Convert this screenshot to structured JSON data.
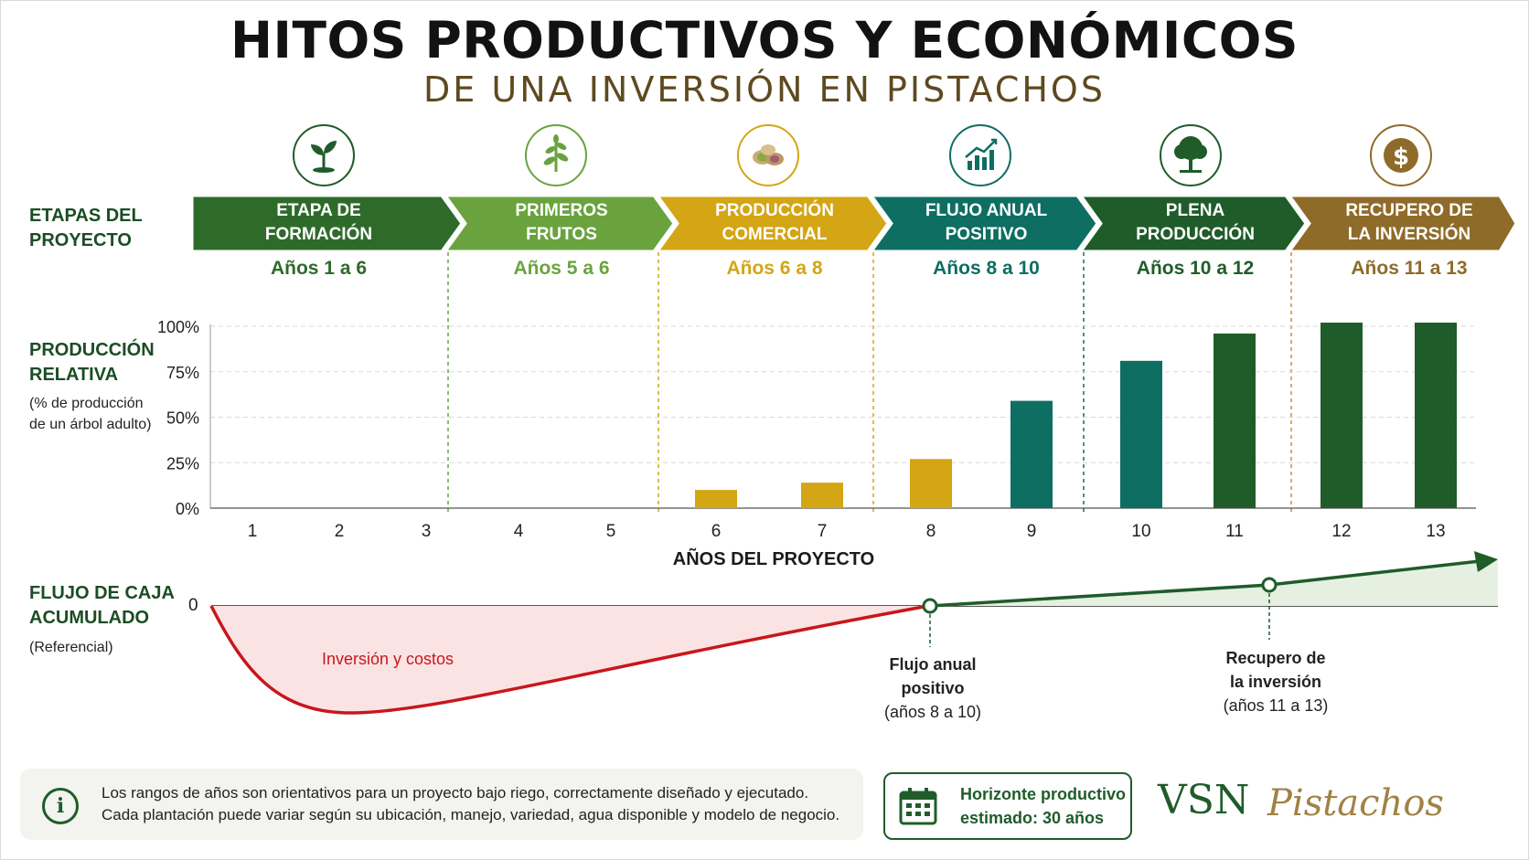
{
  "header": {
    "title": "HITOS PRODUCTIVOS Y ECONÓMICOS",
    "subtitle": "DE UNA INVERSIÓN EN PISTACHOS"
  },
  "rows": {
    "stages_label_1": "ETAPAS DEL",
    "stages_label_2": "PROYECTO",
    "production_label_1": "PRODUCCIÓN",
    "production_label_2": "RELATIVA",
    "production_sub_1": "(% de producción",
    "production_sub_2": "de un árbol adulto)",
    "cash_label_1": "FLUJO DE CAJA",
    "cash_label_2": "ACUMULADO",
    "cash_sub": "(Referencial)"
  },
  "stages": [
    {
      "line1": "ETAPA DE",
      "line2": "FORMACIÓN",
      "years": "Años 1 a 6",
      "color": "#2e6b2b",
      "year_color": "#2e6b2b",
      "icon": "sprout-icon"
    },
    {
      "line1": "PRIMEROS",
      "line2": "FRUTOS",
      "years": "Años 5 a 6",
      "color": "#6aa33e",
      "year_color": "#6aa33e",
      "icon": "plant-icon"
    },
    {
      "line1": "PRODUCCIÓN",
      "line2": "COMERCIAL",
      "years": "Años 6 a 8",
      "color": "#d4a514",
      "year_color": "#d4a514",
      "icon": "pistachio-icon"
    },
    {
      "line1": "FLUJO ANUAL",
      "line2": "POSITIVO",
      "years": "Años 8 a 10",
      "color": "#0e6e62",
      "year_color": "#0e6e62",
      "icon": "growth-chart-icon"
    },
    {
      "line1": "PLENA",
      "line2": "PRODUCCIÓN",
      "years": "Años 10 a 12",
      "color": "#1f5c2a",
      "year_color": "#1f5c2a",
      "icon": "tree-icon"
    },
    {
      "line1": "RECUPERO DE",
      "line2": "LA INVERSIÓN",
      "years": "Años 11 a 13",
      "color": "#8f6b2a",
      "year_color": "#8f6b2a",
      "icon": "dollar-coin-icon"
    }
  ],
  "chart_data": {
    "type": "bar",
    "categories": [
      "1",
      "2",
      "3",
      "4",
      "5",
      "6",
      "7",
      "8",
      "9",
      "10",
      "11",
      "12",
      "13"
    ],
    "values": [
      0,
      0,
      0,
      0,
      0,
      10,
      14,
      27,
      59,
      81,
      96,
      102,
      102
    ],
    "bar_colors": [
      "#d4a514",
      "#d4a514",
      "#d4a514",
      "#d4a514",
      "#d4a514",
      "#d4a514",
      "#d4a514",
      "#d4a514",
      "#0e6e62",
      "#0e6e62",
      "#1f5c2a",
      "#1f5c2a",
      "#1f5c2a"
    ],
    "yticks": [
      "0%",
      "25%",
      "50%",
      "75%",
      "100%"
    ],
    "ytick_values": [
      0,
      25,
      50,
      75,
      100
    ],
    "ylim": [
      0,
      100
    ],
    "xlabel": "AÑOS DEL PROYECTO",
    "ylabel": "",
    "grid": true
  },
  "cashflow": {
    "zero_label": "0",
    "negative_label": "Inversión y costos",
    "milestone1_line1": "Flujo anual",
    "milestone1_line2": "positivo",
    "milestone1_line3": "(años 8 a 10)",
    "milestone2_line1": "Recupero de",
    "milestone2_line2": "la inversión",
    "milestone2_line3": "(años 11 a 13)",
    "negative_color": "#c8161d",
    "positive_color": "#1f5c2a"
  },
  "footer": {
    "note_line1": "Los rangos de años son orientativos para un proyecto bajo riego, correctamente diseñado y ejecutado.",
    "note_line2": "Cada plantación puede variar según su ubicación, manejo, variedad, agua disponible y modelo de negocio.",
    "info_glyph": "i",
    "horizon_line1": "Horizonte productivo",
    "horizon_line2": "estimado: 30 años",
    "brand_a": "VSN",
    "brand_b": "Pistachos"
  }
}
